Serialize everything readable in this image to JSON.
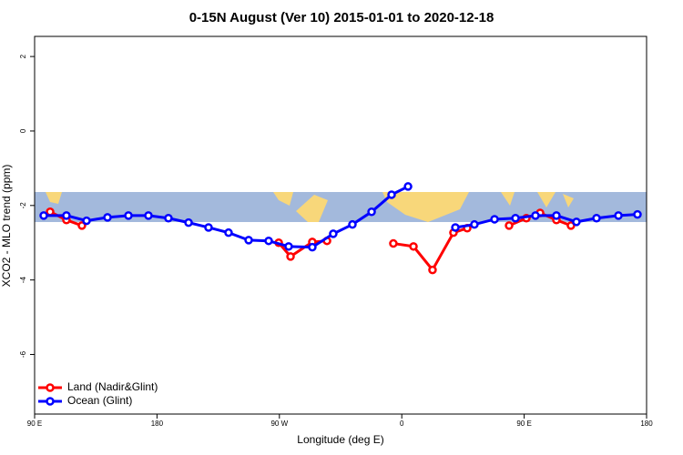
{
  "chart_data": {
    "type": "line",
    "title": "0-15N August (Ver 10)   2015-01-01 to 2020-12-18",
    "x_label": "Longitude (deg E)",
    "y_label": "XCO2 - MLO trend (ppm)",
    "xlim": [
      90,
      540
    ],
    "xticks": [
      {
        "value": 90,
        "label": "90 E"
      },
      180,
      {
        "value": 270,
        "label": "90 W"
      },
      {
        "value": 360,
        "label": "0"
      },
      {
        "value": 450,
        "label": "90 E"
      },
      {
        "value": 540,
        "label": "180"
      }
    ],
    "ylim": [
      -7.6,
      2.54
    ],
    "yticks": [
      2,
      0,
      -2,
      -4,
      -6
    ],
    "legend": "bottom-left",
    "series": [
      {
        "name": "Land (Nadir&Glint)",
        "color": "#ff0000",
        "x": [
          101.4,
          113.4,
          124.8,
          200,
          269.5,
          278.2,
          294.2,
          305.0,
          330,
          353.8,
          368.6,
          382.6,
          398.0,
          408.1,
          425,
          438.9,
          451.6,
          461.7,
          473.7,
          484.4
        ],
        "values": [
          -2.17,
          -2.39,
          -2.54,
          null,
          -3.0,
          -3.37,
          -2.98,
          -2.95,
          null,
          -3.02,
          -3.1,
          -3.73,
          -2.73,
          -2.61,
          null,
          -2.54,
          -2.34,
          -2.2,
          -2.39,
          -2.54
        ]
      },
      {
        "name": "Ocean (Glint)",
        "color": "#0000ff",
        "x": [
          96.7,
          113.4,
          128.2,
          143.6,
          159.0,
          173.7,
          188.4,
          203.2,
          217.9,
          232.6,
          247.4,
          262.1,
          276.8,
          294.2,
          309.6,
          323.7,
          337.8,
          352.5,
          364.6,
          382,
          399.4,
          413.4,
          428.2,
          443.6,
          458.3,
          473.7,
          488.4,
          503.2,
          519.3,
          533.3
        ],
        "values": [
          -2.27,
          -2.27,
          -2.41,
          -2.32,
          -2.27,
          -2.27,
          -2.34,
          -2.46,
          -2.59,
          -2.73,
          -2.93,
          -2.95,
          -3.1,
          -3.12,
          -2.76,
          -2.51,
          -2.17,
          -1.71,
          -1.49,
          null,
          -2.59,
          -2.51,
          -2.37,
          -2.34,
          -2.27,
          -2.27,
          -2.44,
          -2.34,
          -2.27,
          -2.24
        ]
      }
    ]
  }
}
